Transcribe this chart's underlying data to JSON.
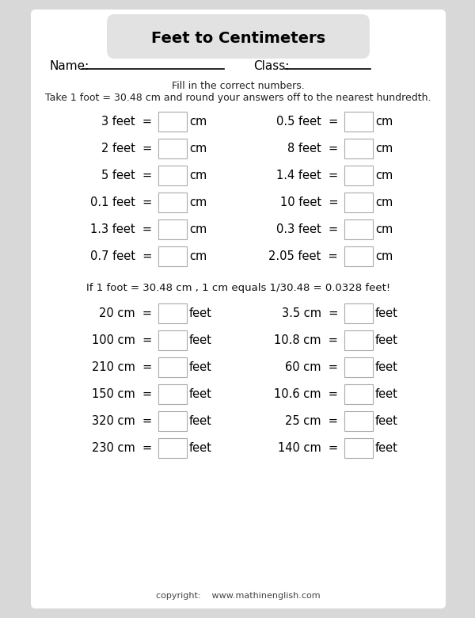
{
  "title": "Feet to Centimeters",
  "bg_color": "#d8d8d8",
  "paper_color": "#ffffff",
  "title_bg": "#e2e2e2",
  "instructions_1": "Fill in the correct numbers.",
  "instructions_2": "Take 1 foot = 30.48 cm and round your answers off to the nearest hundredth.",
  "mid_note": "If 1 foot = 30.48 cm , 1 cm equals 1/30.48 = 0.0328 feet!",
  "copyright": "copyright:    www.mathinenglish.com",
  "left_problems_ft": [
    "3 feet",
    "2 feet",
    "5 feet",
    "0.1 feet",
    "1.3 feet",
    "0.7 feet"
  ],
  "right_problems_ft": [
    "0.5 feet",
    "8 feet",
    "1.4 feet",
    "10 feet",
    "0.3 feet",
    "2.05 feet"
  ],
  "left_problems_cm": [
    "20 cm",
    "100 cm",
    "210 cm",
    "150 cm",
    "320 cm",
    "230 cm"
  ],
  "right_problems_cm": [
    "3.5 cm",
    "10.8 cm",
    "60 cm",
    "10.6 cm",
    "25 cm",
    "140 cm"
  ],
  "unit_ft": "cm",
  "unit_cm": "feet",
  "name_label": "Name:",
  "class_label": "Class:"
}
